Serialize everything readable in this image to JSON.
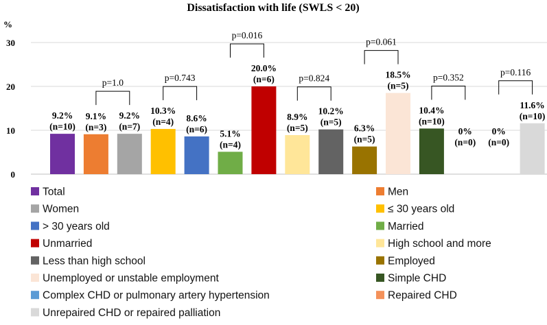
{
  "chart_data": {
    "type": "bar",
    "title": "Dissatisfaction with life (SWLS < 20)",
    "ylabel": "%",
    "ylim": [
      0,
      30
    ],
    "yticks": [
      0,
      10,
      20,
      30
    ],
    "grid": true,
    "bars": [
      {
        "name": "Total",
        "value": 9.2,
        "pct_label": "9.2%",
        "n_label": "(n=10)",
        "color": "#7030a0"
      },
      {
        "name": "Men",
        "value": 9.1,
        "pct_label": "9.1%",
        "n_label": "(n=3)",
        "color": "#ed7d31"
      },
      {
        "name": "Women",
        "value": 9.2,
        "pct_label": "9.2%",
        "n_label": "(n=7)",
        "color": "#a5a5a5"
      },
      {
        "name": "≤ 30 years old",
        "value": 10.3,
        "pct_label": "10.3%",
        "n_label": "(n=4)",
        "color": "#ffc000"
      },
      {
        "name": "> 30 years old",
        "value": 8.6,
        "pct_label": "8.6%",
        "n_label": "(n=6)",
        "color": "#4472c4"
      },
      {
        "name": "Married",
        "value": 5.1,
        "pct_label": "5.1%",
        "n_label": "(n=4)",
        "color": "#70ad47"
      },
      {
        "name": "Unmarried",
        "value": 20.0,
        "pct_label": "20.0%",
        "n_label": "(n=6)",
        "color": "#c00000"
      },
      {
        "name": "High school and more",
        "value": 8.9,
        "pct_label": "8.9%",
        "n_label": "(n=5)",
        "color": "#ffe699"
      },
      {
        "name": "Less than high school",
        "value": 10.2,
        "pct_label": "10.2%",
        "n_label": "(n=5)",
        "color": "#636363"
      },
      {
        "name": "Employed",
        "value": 6.3,
        "pct_label": "6.3%",
        "n_label": "(n=5)",
        "color": "#997300"
      },
      {
        "name": "Unemployed or unstable employment",
        "value": 18.5,
        "pct_label": "18.5%",
        "n_label": "(n=5)",
        "color": "#fbe5d6"
      },
      {
        "name": "Simple CHD",
        "value": 10.4,
        "pct_label": "10.4%",
        "n_label": "(n=10)",
        "color": "#375623"
      },
      {
        "name": "Complex CHD or pulmonary artery hypertension",
        "value": 0,
        "pct_label": "0%",
        "n_label": "(n=0)",
        "color": "#5b9bd5"
      },
      {
        "name": "Repaired CHD",
        "value": 0,
        "pct_label": "0%",
        "n_label": "(n=0)",
        "color": "#f4915a"
      },
      {
        "name": "Unrepaired CHD or repaired palliation",
        "value": 11.6,
        "pct_label": "11.6%",
        "n_label": "(n=10)",
        "color": "#d9d9d9"
      }
    ],
    "comparisons": [
      {
        "label": "p=1.0",
        "from_bar": 1,
        "to_bar": 2
      },
      {
        "label": "p=0.743",
        "from_bar": 3,
        "to_bar": 4
      },
      {
        "label": "p=0.016",
        "from_bar": 5,
        "to_bar": 6
      },
      {
        "label": "p=0.824",
        "from_bar": 7,
        "to_bar": 8
      },
      {
        "label": "p=0.061",
        "from_bar": 9,
        "to_bar": 10
      },
      {
        "label": "p=0.352",
        "from_bar": 11,
        "to_bar": 12
      },
      {
        "label": "p=0.116",
        "from_bar": 13,
        "to_bar": 14
      }
    ],
    "legend_position": "bottom"
  }
}
